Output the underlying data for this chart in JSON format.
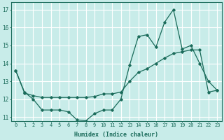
{
  "xlabel": "Humidex (Indice chaleur)",
  "ylabel": "",
  "background_color": "#c8ece9",
  "grid_color": "#ffffff",
  "line_color": "#1a6b5a",
  "xlim": [
    -0.5,
    23.5
  ],
  "ylim": [
    10.8,
    17.4
  ],
  "yticks": [
    11,
    12,
    13,
    14,
    15,
    16,
    17
  ],
  "xticks": [
    0,
    1,
    2,
    3,
    4,
    5,
    6,
    7,
    8,
    9,
    10,
    11,
    12,
    13,
    14,
    15,
    16,
    17,
    18,
    19,
    20,
    21,
    22,
    23
  ],
  "series1_x": [
    0,
    1,
    2,
    3,
    4,
    5,
    6,
    7,
    8,
    9,
    10,
    11,
    12,
    13,
    14,
    15,
    16,
    17,
    18,
    19,
    20,
    21,
    22,
    23
  ],
  "series1_y": [
    13.6,
    12.4,
    12.0,
    11.4,
    11.4,
    11.4,
    11.3,
    10.85,
    10.8,
    11.2,
    11.4,
    11.4,
    12.0,
    13.9,
    15.5,
    15.6,
    14.9,
    16.3,
    17.0,
    14.8,
    15.0,
    14.0,
    13.0,
    12.5
  ],
  "series2_x": [
    0,
    1,
    2,
    3,
    4,
    5,
    6,
    7,
    8,
    9,
    10,
    11,
    12,
    13,
    14,
    15,
    16,
    17,
    18,
    19,
    20,
    21,
    22,
    23
  ],
  "series2_y": [
    13.6,
    12.35,
    12.2,
    12.1,
    12.1,
    12.1,
    12.1,
    12.1,
    12.1,
    12.15,
    12.3,
    12.3,
    12.4,
    13.0,
    13.5,
    13.7,
    14.0,
    14.3,
    14.55,
    14.65,
    14.75,
    14.75,
    12.4,
    12.5
  ]
}
